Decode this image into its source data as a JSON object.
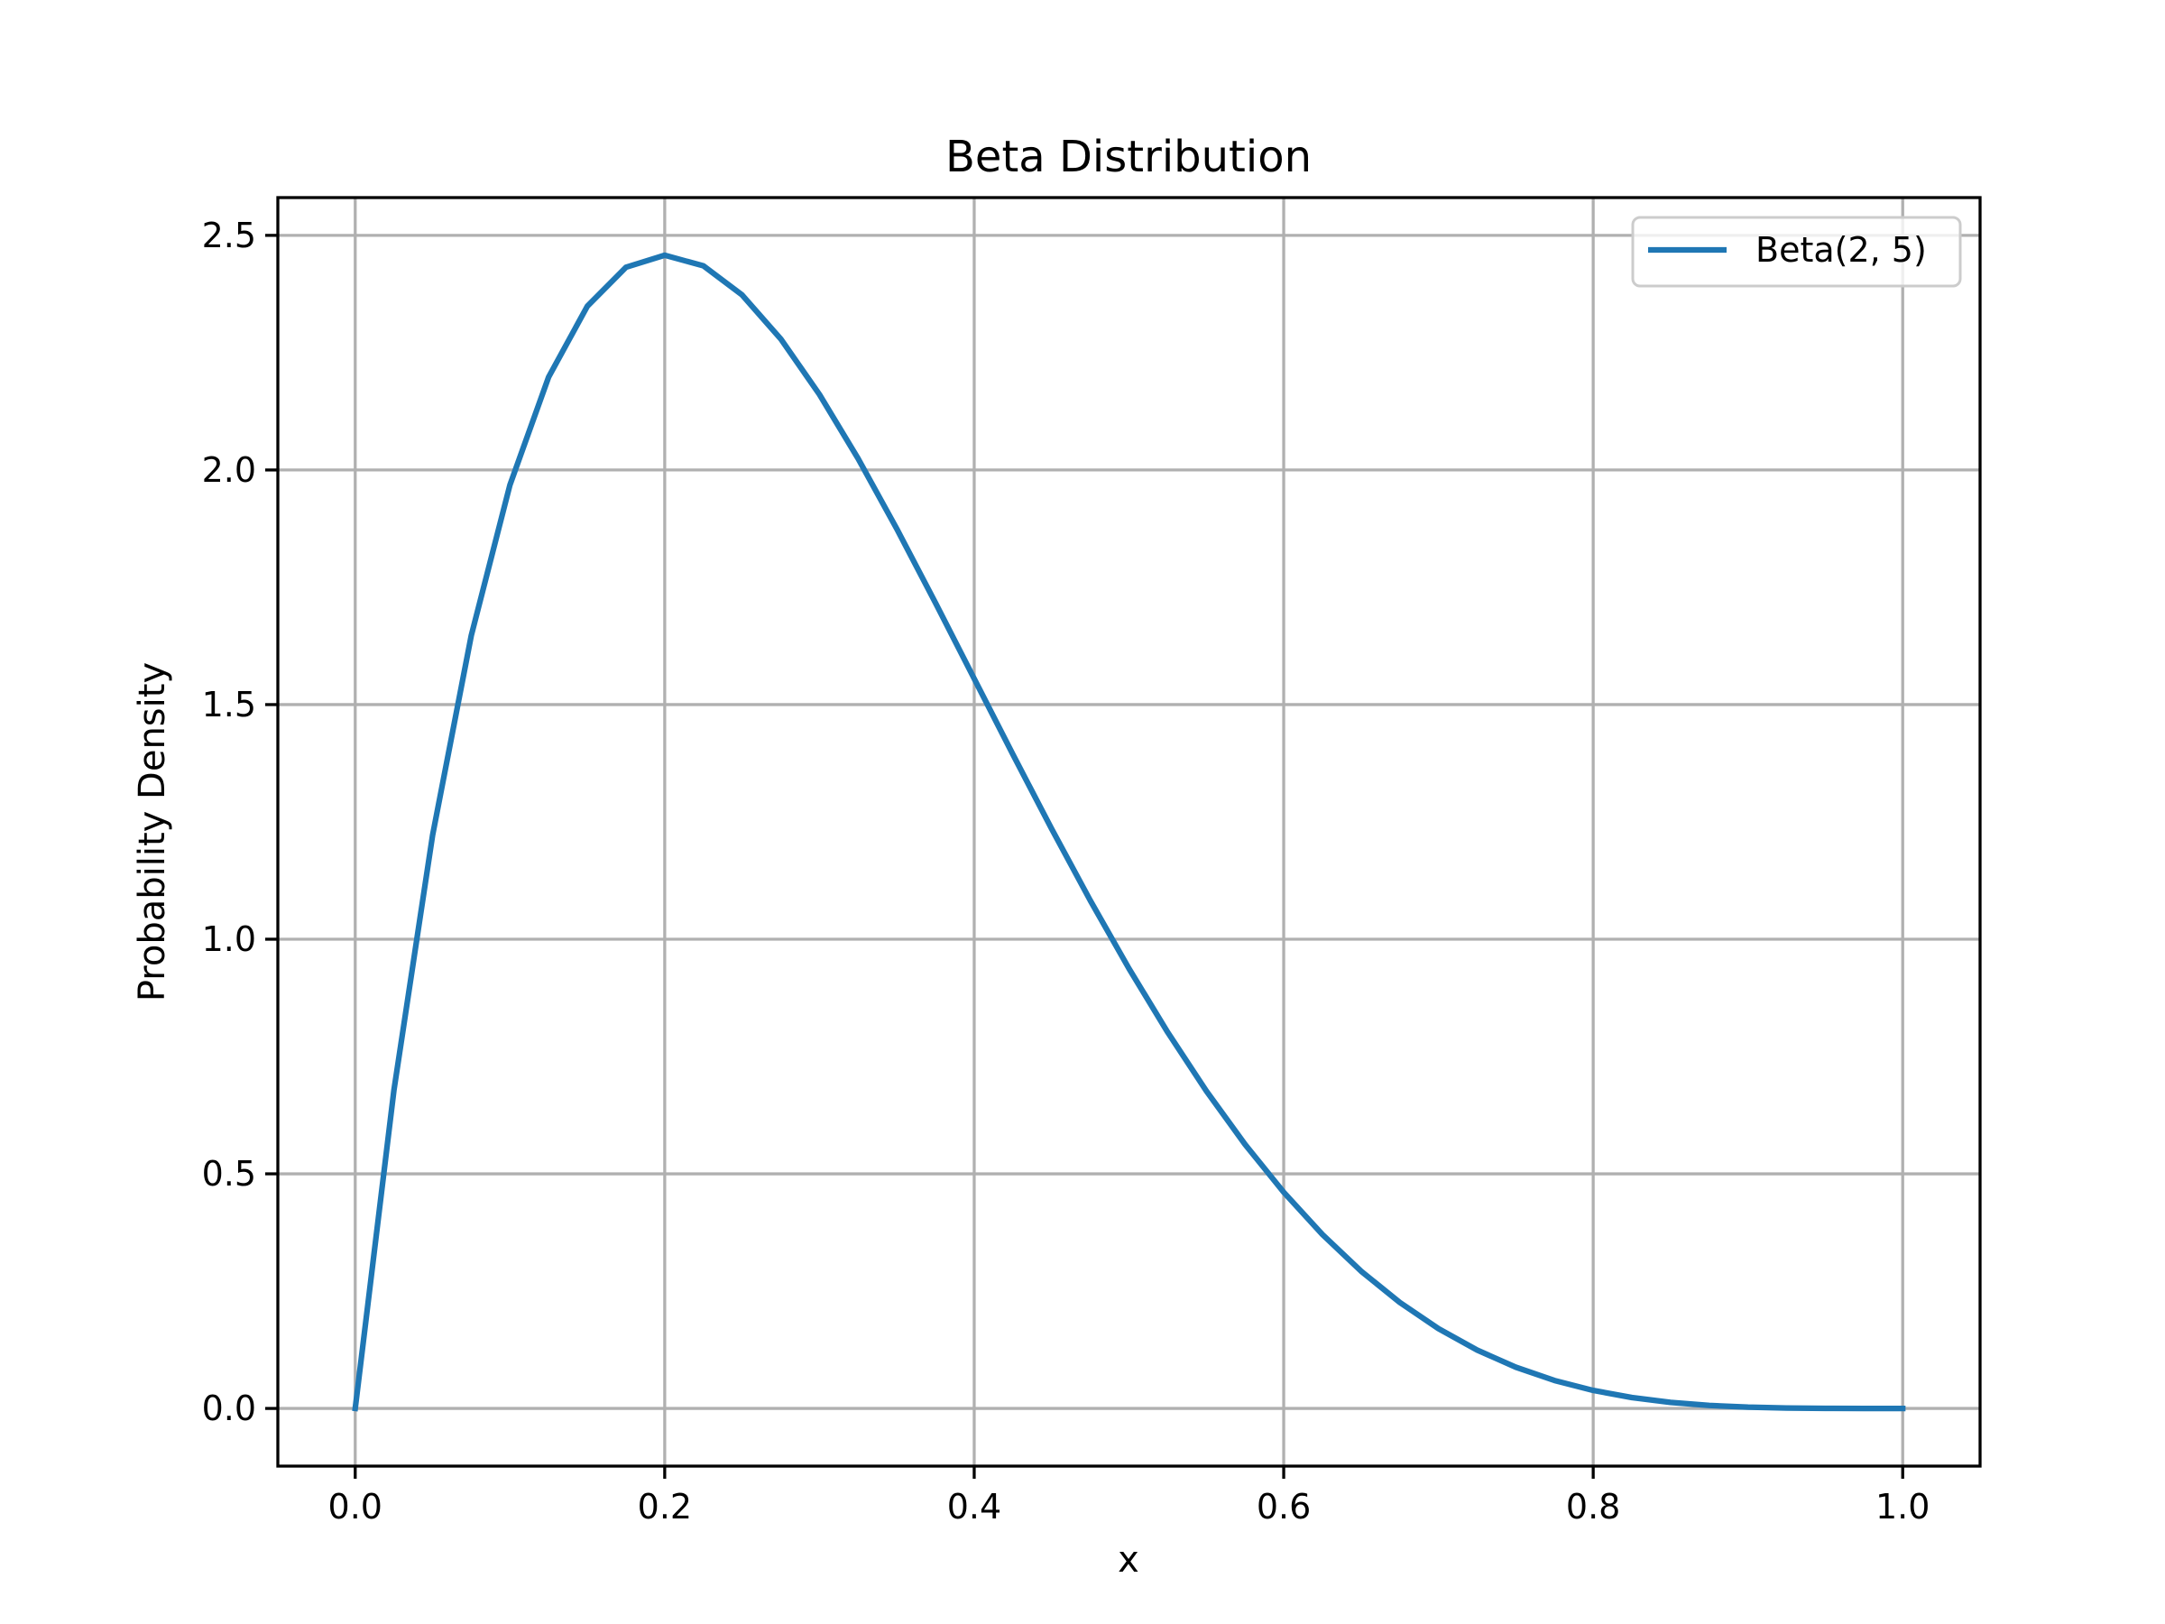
{
  "chart_data": {
    "type": "line",
    "title": "Beta Distribution",
    "x_label": "x",
    "y_label": "Probability Density",
    "x": [
      0,
      0.025,
      0.05,
      0.075,
      0.1,
      0.125,
      0.15,
      0.175,
      0.2,
      0.225,
      0.25,
      0.275,
      0.3,
      0.325,
      0.35,
      0.375,
      0.4,
      0.425,
      0.45,
      0.475,
      0.5,
      0.525,
      0.55,
      0.575,
      0.6,
      0.625,
      0.65,
      0.675,
      0.7,
      0.725,
      0.75,
      0.775,
      0.8,
      0.825,
      0.85,
      0.875,
      0.9,
      0.925,
      0.95,
      0.975,
      1.0
    ],
    "series": [
      {
        "name": "Beta(2, 5)",
        "color": "#1f77b4",
        "values": [
          0,
          0.67777,
          1.22176,
          1.64721,
          1.9683,
          2.19818,
          2.34903,
          2.43206,
          2.4576,
          2.43506,
          2.37305,
          2.27933,
          2.1609,
          2.02404,
          1.87432,
          1.71661,
          1.5552,
          1.39374,
          1.23534,
          1.08256,
          0.9375,
          0.80178,
          0.6766,
          0.56279,
          0.4608,
          0.37079,
          0.29262,
          0.22593,
          0.1701,
          0.12439,
          0.08789,
          0.05959,
          0.0384,
          0.02321,
          0.01291,
          0.00641,
          0.0027,
          0.00088,
          0.00018,
          1e-05,
          0
        ]
      }
    ],
    "xlim": [
      -0.05,
      1.05
    ],
    "ylim": [
      -0.1229,
      2.5805
    ],
    "xticks": [
      {
        "value": 0,
        "label": "0.0"
      },
      0.2,
      0.4,
      0.6,
      0.8,
      {
        "value": 1,
        "label": "1.0"
      }
    ],
    "yticks": [
      {
        "value": 0,
        "label": "0.0"
      },
      0.5,
      {
        "value": 1,
        "label": "1.0"
      },
      1.5,
      {
        "value": 2,
        "label": "2.0"
      },
      2.5
    ],
    "grid": true,
    "legend": "upper right"
  }
}
